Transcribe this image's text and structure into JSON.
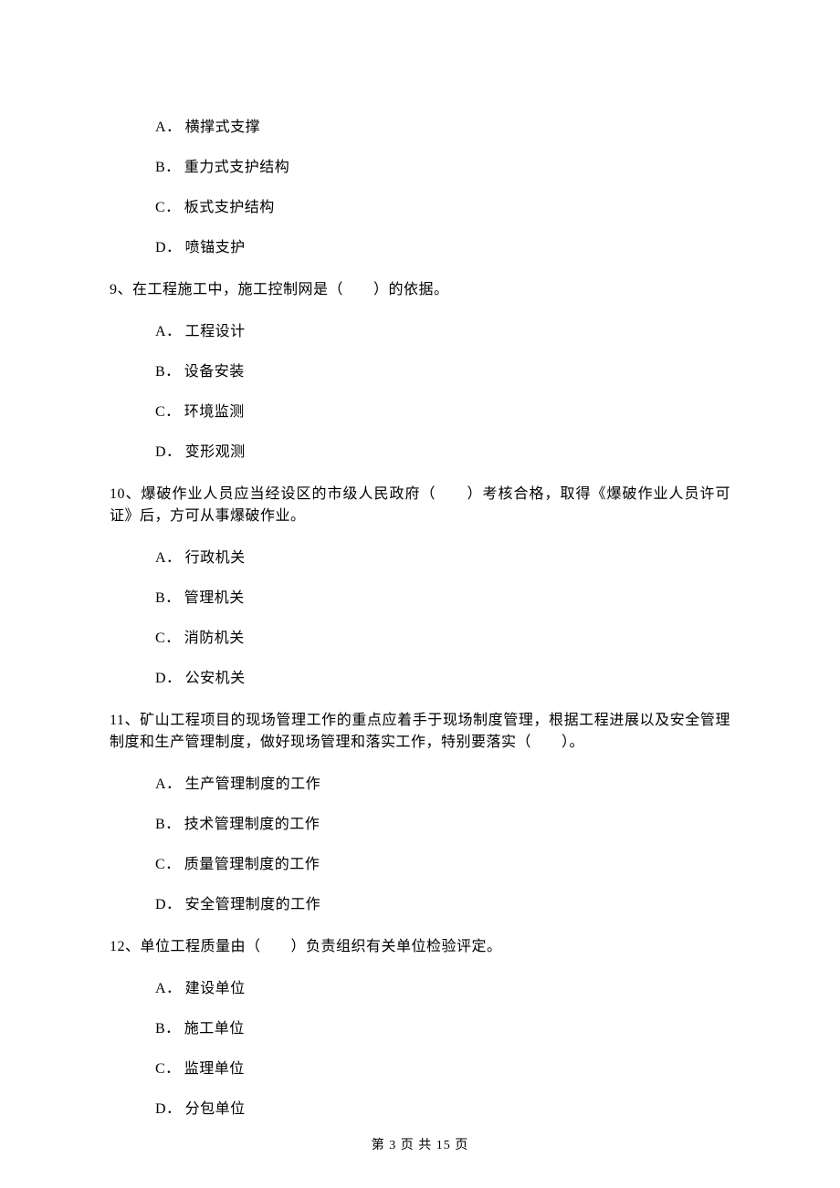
{
  "orphan_options": {
    "items": [
      {
        "label": "A．",
        "text": "横撑式支撑"
      },
      {
        "label": "B．",
        "text": "重力式支护结构"
      },
      {
        "label": "C．",
        "text": "板式支护结构"
      },
      {
        "label": "D．",
        "text": "喷锚支护"
      }
    ]
  },
  "questions": [
    {
      "num": "9",
      "text_before": "、在工程施工中，施工控制网是（　　）的依据。",
      "options": [
        {
          "label": "A．",
          "text": "工程设计"
        },
        {
          "label": "B．",
          "text": "设备安装"
        },
        {
          "label": "C．",
          "text": "环境监测"
        },
        {
          "label": "D．",
          "text": "变形观测"
        }
      ]
    },
    {
      "num": "10",
      "text_before": "、爆破作业人员应当经设区的市级人民政府（　　）考核合格，取得《爆破作业人员许可证》后，方可从事爆破作业。",
      "options": [
        {
          "label": "A．",
          "text": "行政机关"
        },
        {
          "label": "B．",
          "text": "管理机关"
        },
        {
          "label": "C．",
          "text": "消防机关"
        },
        {
          "label": "D．",
          "text": "公安机关"
        }
      ]
    },
    {
      "num": "11",
      "text_before": "、矿山工程项目的现场管理工作的重点应着手于现场制度管理，根据工程进展以及安全管理制度和生产管理制度，做好现场管理和落实工作，特别要落实（　　）。",
      "options": [
        {
          "label": "A．",
          "text": "生产管理制度的工作"
        },
        {
          "label": "B．",
          "text": "技术管理制度的工作"
        },
        {
          "label": "C．",
          "text": "质量管理制度的工作"
        },
        {
          "label": "D．",
          "text": "安全管理制度的工作"
        }
      ]
    },
    {
      "num": "12",
      "text_before": "、单位工程质量由（　　）负责组织有关单位检验评定。",
      "options": [
        {
          "label": "A．",
          "text": "建设单位"
        },
        {
          "label": "B．",
          "text": "施工单位"
        },
        {
          "label": "C．",
          "text": "监理单位"
        },
        {
          "label": "D．",
          "text": "分包单位"
        }
      ]
    }
  ],
  "footer": "第 3 页 共 15 页"
}
